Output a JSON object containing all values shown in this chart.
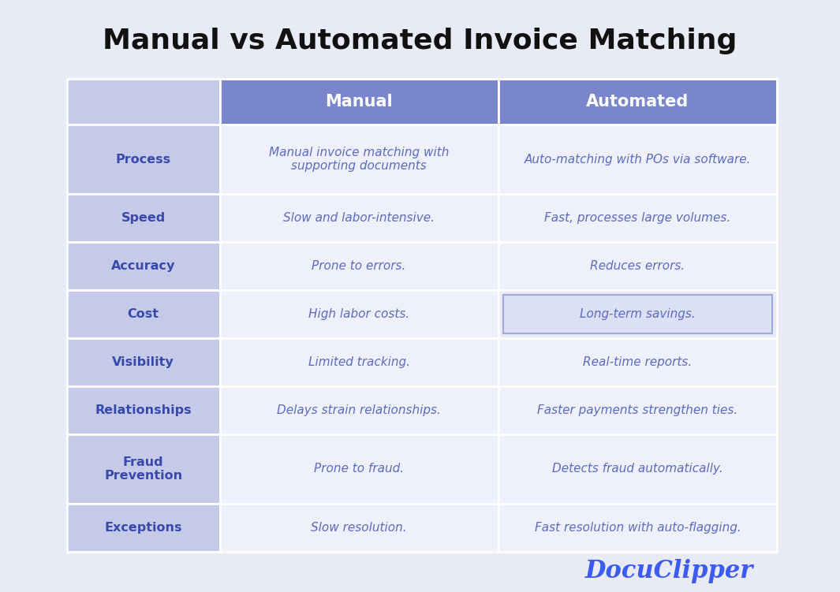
{
  "title": "Manual vs Automated Invoice Matching",
  "title_fontsize": 26,
  "title_color": "#111111",
  "background_color": "#e8eaf6",
  "header_color": "#7986cb",
  "header_text_color": "#ffffff",
  "row_label_bg": "#c5cae9",
  "row_label_color": "#3949ab",
  "cell_bg": "#eef0fb",
  "cell_text_color": "#5c6bc0",
  "grid_color": "#ffffff",
  "cost_auto_border_color": "#9fa8da",
  "cost_auto_bg": "#e8eaf6",
  "headers": [
    "",
    "Manual",
    "Automated"
  ],
  "rows": [
    {
      "label": "Process",
      "manual": "Manual invoice matching with\nsupporting documents",
      "automated": "Auto-matching with POs via software.",
      "tall": true
    },
    {
      "label": "Speed",
      "manual": "Slow and labor-intensive.",
      "automated": "Fast, processes large volumes.",
      "tall": false
    },
    {
      "label": "Accuracy",
      "manual": "Prone to errors.",
      "automated": "Reduces errors.",
      "tall": false
    },
    {
      "label": "Cost",
      "manual": "High labor costs.",
      "automated": "Long-term savings.",
      "tall": false,
      "cost_highlight": true
    },
    {
      "label": "Visibility",
      "manual": "Limited tracking.",
      "automated": "Real-time reports.",
      "tall": false
    },
    {
      "label": "Relationships",
      "manual": "Delays strain relationships.",
      "automated": "Faster payments strengthen ties.",
      "tall": false
    },
    {
      "label": "Fraud\nPrevention",
      "manual": "Prone to fraud.",
      "automated": "Detects fraud automatically.",
      "tall": true
    },
    {
      "label": "Exceptions",
      "manual": "Slow resolution.",
      "automated": "Fast resolution with auto-flagging.",
      "tall": false
    }
  ],
  "footer_text": "DocuClipper",
  "footer_color": "#3d5af1",
  "footer_fontsize": 22
}
